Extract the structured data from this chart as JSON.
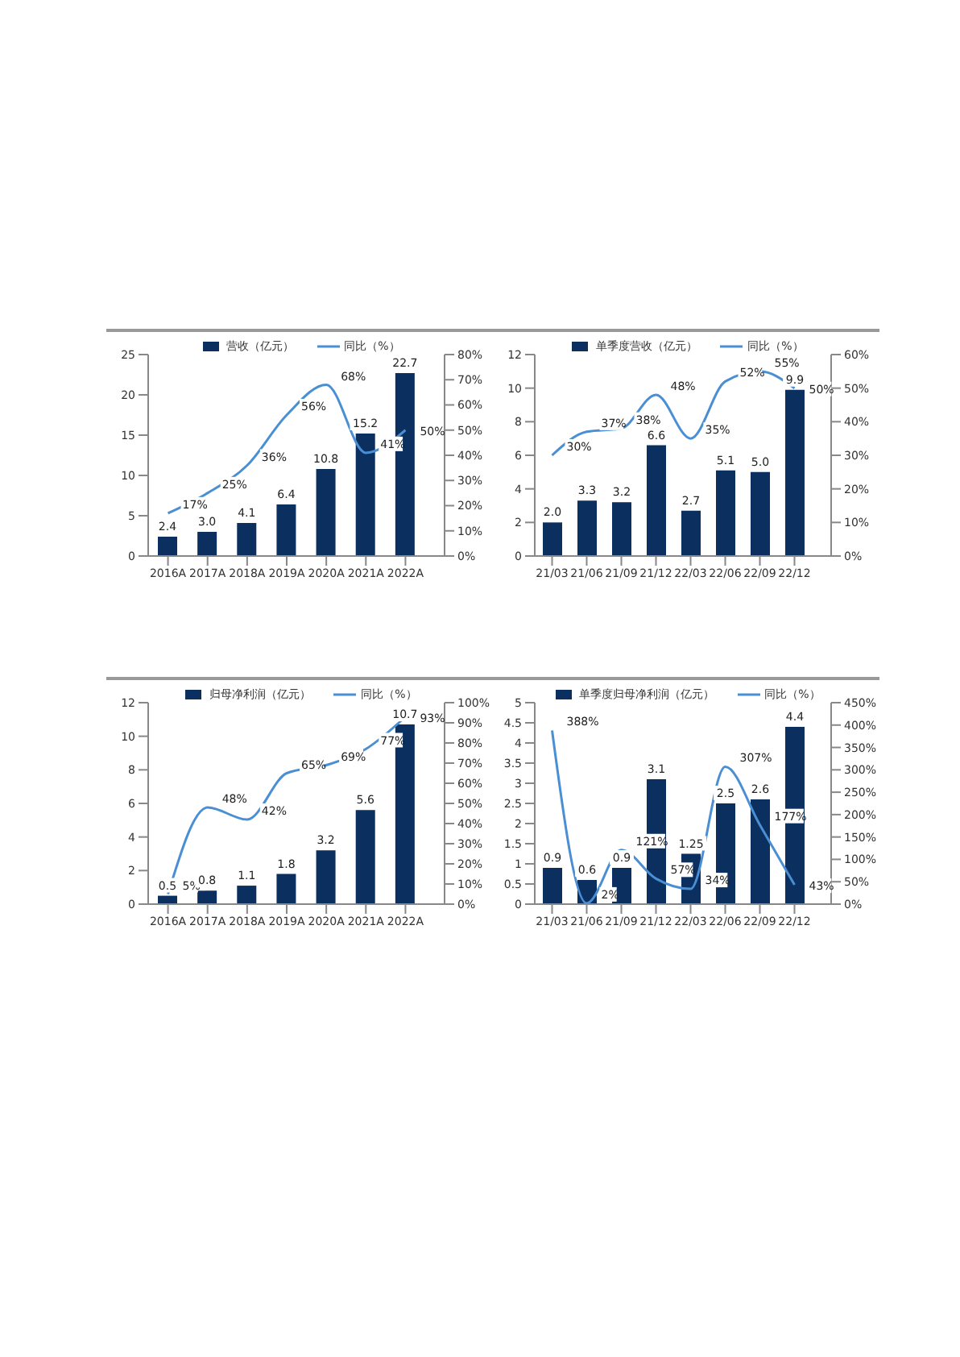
{
  "chart_data": [
    {
      "type": "bar",
      "categories": [
        "2016A",
        "2017A",
        "2018A",
        "2019A",
        "2020A",
        "2021A",
        "2022A"
      ],
      "ylim": [
        0,
        25
      ],
      "yticks": [
        0,
        5,
        10,
        15,
        20,
        25
      ],
      "y2lim": [
        0,
        80
      ],
      "y2ticks": [
        {
          "value": 0,
          "label": "0%"
        },
        {
          "value": 10,
          "label": "10%"
        },
        {
          "value": 20,
          "label": "20%"
        },
        {
          "value": 30,
          "label": "30%"
        },
        {
          "value": 40,
          "label": "40%"
        },
        {
          "value": 50,
          "label": "50%"
        },
        {
          "value": 60,
          "label": "60%"
        },
        {
          "value": 70,
          "label": "70%"
        },
        {
          "value": 80,
          "label": "80%"
        }
      ],
      "legend": "top",
      "series": [
        {
          "name": "营收（亿元）",
          "color": "#0b2f5e",
          "values": [
            2.4,
            3.0,
            4.1,
            6.4,
            10.8,
            15.2,
            22.7
          ],
          "value_labels": [
            "2.4",
            "3.0",
            "4.1",
            "6.4",
            "10.8",
            "15.2",
            "22.7"
          ]
        },
        {
          "name": "同比（%）",
          "type": "line",
          "axis": "y2",
          "color": "#4a8fd4",
          "values": [
            17,
            25,
            36,
            56,
            68,
            41,
            50
          ],
          "value_labels": [
            "17%",
            "25%",
            "36%",
            "56%",
            "68%",
            "41%",
            "50%"
          ]
        }
      ]
    },
    {
      "type": "bar",
      "categories": [
        "21/03",
        "21/06",
        "21/09",
        "21/12",
        "22/03",
        "22/06",
        "22/09",
        "22/12"
      ],
      "ylim": [
        0,
        12
      ],
      "yticks": [
        0,
        2,
        4,
        6,
        8,
        10,
        12
      ],
      "y2lim": [
        0,
        60
      ],
      "y2ticks": [
        {
          "value": 0,
          "label": "0%"
        },
        {
          "value": 10,
          "label": "10%"
        },
        {
          "value": 20,
          "label": "20%"
        },
        {
          "value": 30,
          "label": "30%"
        },
        {
          "value": 40,
          "label": "40%"
        },
        {
          "value": 50,
          "label": "50%"
        },
        {
          "value": 60,
          "label": "60%"
        }
      ],
      "legend": "top",
      "series": [
        {
          "name": "单季度营收（亿元）",
          "color": "#0b2f5e",
          "values": [
            2.0,
            3.3,
            3.2,
            6.6,
            2.7,
            5.1,
            5.0,
            9.9
          ],
          "value_labels": [
            "2.0",
            "3.3",
            "3.2",
            "6.6",
            "2.7",
            "5.1",
            "5.0",
            "9.9"
          ]
        },
        {
          "name": "同比（%）",
          "type": "line",
          "axis": "y2",
          "color": "#4a8fd4",
          "values": [
            30,
            37,
            38,
            48,
            35,
            52,
            55,
            50
          ],
          "value_labels": [
            "30%",
            "37%",
            "38%",
            "48%",
            "35%",
            "52%",
            "55%",
            "50%"
          ]
        }
      ]
    },
    {
      "type": "bar",
      "categories": [
        "2016A",
        "2017A",
        "2018A",
        "2019A",
        "2020A",
        "2021A",
        "2022A"
      ],
      "ylim": [
        0,
        12
      ],
      "yticks": [
        0,
        2,
        4,
        6,
        8,
        10,
        12
      ],
      "y2lim": [
        0,
        100
      ],
      "y2ticks": [
        {
          "value": 0,
          "label": "0%"
        },
        {
          "value": 10,
          "label": "10%"
        },
        {
          "value": 20,
          "label": "20%"
        },
        {
          "value": 30,
          "label": "30%"
        },
        {
          "value": 40,
          "label": "40%"
        },
        {
          "value": 50,
          "label": "50%"
        },
        {
          "value": 60,
          "label": "60%"
        },
        {
          "value": 70,
          "label": "70%"
        },
        {
          "value": 80,
          "label": "80%"
        },
        {
          "value": 90,
          "label": "90%"
        },
        {
          "value": 100,
          "label": "100%"
        }
      ],
      "legend": "top",
      "series": [
        {
          "name": "归母净利润（亿元）",
          "color": "#0b2f5e",
          "values": [
            0.5,
            0.8,
            1.1,
            1.8,
            3.2,
            5.6,
            10.7
          ],
          "value_labels": [
            "0.5",
            "0.8",
            "1.1",
            "1.8",
            "3.2",
            "5.6",
            "10.7"
          ]
        },
        {
          "name": "同比（%）",
          "type": "line",
          "axis": "y2",
          "color": "#4a8fd4",
          "values": [
            5,
            48,
            42,
            65,
            69,
            77,
            93
          ],
          "value_labels": [
            "5%",
            "48%",
            "42%",
            "65%",
            "69%",
            "77%",
            "93%"
          ]
        }
      ]
    },
    {
      "type": "bar",
      "categories": [
        "21/03",
        "21/06",
        "21/09",
        "21/12",
        "22/03",
        "22/06",
        "22/09",
        "22/12"
      ],
      "ylim": [
        0,
        5
      ],
      "yticks": [
        0,
        0.5,
        1,
        1.5,
        2,
        2.5,
        3,
        3.5,
        4,
        4.5,
        5
      ],
      "y2lim": [
        0,
        450
      ],
      "y2ticks": [
        {
          "value": 0,
          "label": "0%"
        },
        {
          "value": 50,
          "label": "50%"
        },
        {
          "value": 100,
          "label": "100%"
        },
        {
          "value": 150,
          "label": "150%"
        },
        {
          "value": 200,
          "label": "200%"
        },
        {
          "value": 250,
          "label": "250%"
        },
        {
          "value": 300,
          "label": "300%"
        },
        {
          "value": 350,
          "label": "350%"
        },
        {
          "value": 400,
          "label": "400%"
        },
        {
          "value": 450,
          "label": "450%"
        }
      ],
      "legend": "top",
      "series": [
        {
          "name": "单季度归母净利润（亿元）",
          "color": "#0b2f5e",
          "values": [
            0.9,
            0.6,
            0.9,
            3.1,
            1.25,
            2.5,
            2.6,
            4.4
          ],
          "value_labels": [
            "0.9",
            "0.6",
            "0.9",
            "3.1",
            "1.25",
            "2.5",
            "2.6",
            "4.4"
          ]
        },
        {
          "name": "同比（%）",
          "type": "line",
          "axis": "y2",
          "color": "#4a8fd4",
          "values": [
            388,
            2,
            121,
            57,
            34,
            307,
            177,
            43
          ],
          "value_labels": [
            "388%",
            "2%",
            "121%",
            "57%",
            "34%",
            "307%",
            "177%",
            "43%"
          ]
        }
      ]
    }
  ]
}
